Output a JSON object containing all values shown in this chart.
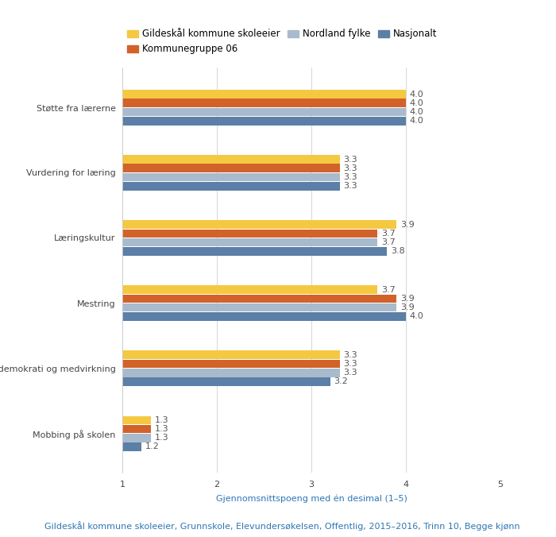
{
  "categories": [
    "Støtte fra lærerne",
    "Vurdering for læring",
    "Læringskultur",
    "Mestring",
    "Elevdemokrati og medvirkning",
    "Mobbing på skolen"
  ],
  "series": {
    "Gildeskål kommune skoleeier": [
      4.0,
      3.3,
      3.9,
      3.7,
      3.3,
      1.3
    ],
    "Kommunegruppe 06": [
      4.0,
      3.3,
      3.7,
      3.9,
      3.3,
      1.3
    ],
    "Nordland fylke": [
      4.0,
      3.3,
      3.7,
      3.9,
      3.3,
      1.3
    ],
    "Nasjonalt": [
      4.0,
      3.3,
      3.8,
      4.0,
      3.2,
      1.2
    ]
  },
  "colors": {
    "Gildeskål kommune skoleeier": "#F5C842",
    "Kommunegruppe 06": "#D2622A",
    "Nordland fylke": "#A8BBCC",
    "Nasjonalt": "#5B7FA6"
  },
  "series_order": [
    "Gildeskål kommune skoleeier",
    "Kommunegruppe 06",
    "Nordland fylke",
    "Nasjonalt"
  ],
  "xlabel": "Gjennomsnittspoeng med én desimal (1–5)",
  "xlim": [
    1,
    5
  ],
  "xticks": [
    1,
    2,
    3,
    4,
    5
  ],
  "footnote": "Gildeskål kommune skoleeier, Grunnskole, Elevundersøkelsen, Offentlig, 2015–2016, Trinn 10, Begge kjønn",
  "background_color": "#ffffff",
  "grid_color": "#d0d0d0",
  "bar_height": 0.13,
  "label_fontsize": 8,
  "tick_fontsize": 8,
  "footnote_fontsize": 8,
  "legend_fontsize": 8.5,
  "value_label_color": "#555555"
}
